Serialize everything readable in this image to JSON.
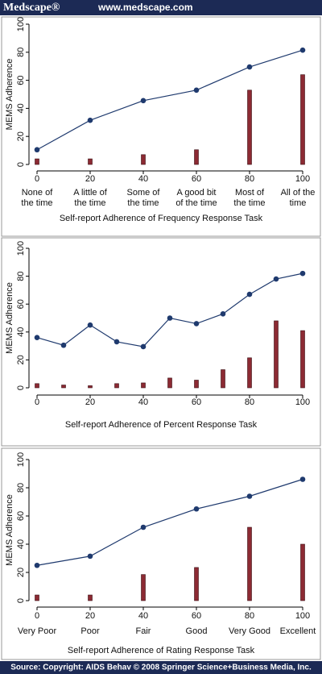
{
  "header": {
    "brand": "Medscape®",
    "url": "www.medscape.com"
  },
  "footer": "Source: Copyright: AIDS Behav © 2008 Springer Science+Business Media, Inc.",
  "chart_data": [
    {
      "type": "combo",
      "ylabel": "MEMS Adherence",
      "xlabel": "Self-report Adherence of Frequency Response Task",
      "x": [
        0,
        20,
        40,
        60,
        80,
        100
      ],
      "category_labels": [
        [
          "None of",
          "the time"
        ],
        [
          "A little of",
          "the time"
        ],
        [
          "Some of",
          "the time"
        ],
        [
          "A good bit",
          "of the time"
        ],
        [
          "Most of",
          "the time"
        ],
        [
          "All of the",
          "time"
        ]
      ],
      "series": [
        {
          "type": "bar",
          "color": "#8c2a33",
          "values": [
            4,
            4,
            7,
            10.5,
            53,
            64
          ]
        },
        {
          "type": "line",
          "color": "#1f3a6e",
          "values": [
            10.5,
            31.5,
            45.5,
            53,
            69.5,
            81.5
          ]
        }
      ],
      "xlim": [
        0,
        100
      ],
      "xticks": [
        0,
        20,
        40,
        60,
        80,
        100
      ],
      "ylim": [
        0,
        100
      ],
      "yticks": [
        0,
        20,
        40,
        60,
        80,
        100
      ]
    },
    {
      "type": "combo",
      "ylabel": "MEMS Adherence",
      "xlabel": "Self-report Adherence of Percent Response Task",
      "x": [
        0,
        10,
        20,
        30,
        40,
        50,
        60,
        70,
        80,
        90,
        100
      ],
      "series": [
        {
          "type": "bar",
          "color": "#8c2a33",
          "values": [
            3,
            2,
            1.5,
            3,
            3.5,
            7,
            5.5,
            13,
            21.5,
            48,
            41
          ]
        },
        {
          "type": "line",
          "color": "#1f3a6e",
          "values": [
            36,
            30.5,
            45,
            33,
            29.5,
            50,
            46,
            53,
            67,
            78,
            82
          ]
        }
      ],
      "xlim": [
        0,
        100
      ],
      "xticks": [
        0,
        20,
        40,
        60,
        80,
        100
      ],
      "ylim": [
        0,
        100
      ],
      "yticks": [
        0,
        20,
        40,
        60,
        80,
        100
      ]
    },
    {
      "type": "combo",
      "ylabel": "MEMS Adherence",
      "xlabel": "Self-report Adherence of Rating Response Task",
      "x": [
        0,
        20,
        40,
        60,
        80,
        100
      ],
      "category_labels": [
        [
          "Very Poor"
        ],
        [
          "Poor"
        ],
        [
          "Fair"
        ],
        [
          "Good"
        ],
        [
          "Very Good"
        ],
        [
          "Excellent"
        ]
      ],
      "series": [
        {
          "type": "bar",
          "color": "#8c2a33",
          "values": [
            4,
            4,
            18.5,
            23.5,
            52,
            40
          ]
        },
        {
          "type": "line",
          "color": "#1f3a6e",
          "values": [
            25,
            31.5,
            52,
            65,
            74,
            86
          ]
        }
      ],
      "xlim": [
        0,
        100
      ],
      "xticks": [
        0,
        20,
        40,
        60,
        80,
        100
      ],
      "ylim": [
        0,
        100
      ],
      "yticks": [
        0,
        20,
        40,
        60,
        80,
        100
      ]
    }
  ]
}
